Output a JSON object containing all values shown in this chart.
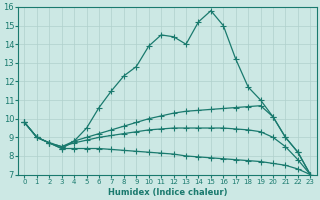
{
  "xlabel": "Humidex (Indice chaleur)",
  "bg_color": "#cce8e4",
  "line_color": "#1a7a6e",
  "grid_color": "#b0d0cc",
  "xlim": [
    -0.5,
    23.5
  ],
  "ylim": [
    7,
    16
  ],
  "xticks": [
    0,
    1,
    2,
    3,
    4,
    5,
    6,
    7,
    8,
    9,
    10,
    11,
    12,
    13,
    14,
    15,
    16,
    17,
    18,
    19,
    20,
    21,
    22,
    23
  ],
  "yticks": [
    7,
    8,
    9,
    10,
    11,
    12,
    13,
    14,
    15,
    16
  ],
  "line1_x": [
    0,
    1,
    2,
    3,
    4,
    5,
    6,
    7,
    8,
    9,
    10,
    11,
    12,
    13,
    14,
    15,
    16,
    17,
    18,
    19,
    20,
    21,
    22,
    23
  ],
  "line1_y": [
    9.8,
    9.0,
    8.7,
    8.4,
    8.8,
    9.5,
    10.6,
    11.5,
    12.3,
    12.8,
    13.9,
    14.5,
    14.4,
    14.0,
    15.2,
    15.8,
    15.0,
    13.2,
    11.7,
    11.0,
    10.1,
    9.0,
    8.2,
    7.0
  ],
  "line2_x": [
    0,
    1,
    2,
    3,
    4,
    5,
    6,
    7,
    8,
    9,
    10,
    11,
    12,
    13,
    14,
    15,
    16,
    17,
    18,
    19,
    20,
    21,
    22,
    23
  ],
  "line2_y": [
    9.8,
    9.0,
    8.7,
    8.5,
    8.8,
    9.0,
    9.2,
    9.4,
    9.6,
    9.8,
    10.0,
    10.15,
    10.3,
    10.4,
    10.45,
    10.5,
    10.55,
    10.6,
    10.65,
    10.7,
    10.1,
    9.0,
    8.2,
    7.0
  ],
  "line3_x": [
    0,
    1,
    2,
    3,
    4,
    5,
    6,
    7,
    8,
    9,
    10,
    11,
    12,
    13,
    14,
    15,
    16,
    17,
    18,
    19,
    20,
    21,
    22,
    23
  ],
  "line3_y": [
    9.8,
    9.0,
    8.7,
    8.5,
    8.7,
    8.85,
    9.0,
    9.1,
    9.2,
    9.3,
    9.4,
    9.45,
    9.5,
    9.5,
    9.5,
    9.5,
    9.5,
    9.45,
    9.4,
    9.3,
    9.0,
    8.5,
    7.8,
    7.0
  ],
  "line4_x": [
    0,
    1,
    2,
    3,
    4,
    5,
    6,
    7,
    8,
    9,
    10,
    11,
    12,
    13,
    14,
    15,
    16,
    17,
    18,
    19,
    20,
    21,
    22,
    23
  ],
  "line4_y": [
    9.8,
    9.0,
    8.7,
    8.4,
    8.4,
    8.4,
    8.4,
    8.35,
    8.3,
    8.25,
    8.2,
    8.15,
    8.1,
    8.0,
    7.95,
    7.9,
    7.85,
    7.8,
    7.75,
    7.7,
    7.6,
    7.5,
    7.3,
    7.0
  ]
}
